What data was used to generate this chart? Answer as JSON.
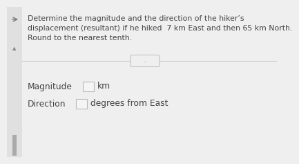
{
  "title_line1": "Determine the magnitude and the direction of the hiker’s",
  "title_line2": "displacement (resultant) if he hiked  7 km East and then 65 km North.",
  "title_line3": "Round to the nearest tenth.",
  "divider_dots": "...",
  "label_magnitude": "Magnitude",
  "label_magnitude_unit": "km",
  "label_direction": "Direction",
  "label_direction_unit": "degrees from East",
  "bg_color": "#efefef",
  "text_color": "#444444",
  "box_color": "#f5f5f5",
  "box_border": "#bbbbbb",
  "sidebar_color": "#e0e0e0",
  "arrow_color": "#777777",
  "divider_color": "#cccccc",
  "title_fontsize": 7.8,
  "label_fontsize": 8.8
}
